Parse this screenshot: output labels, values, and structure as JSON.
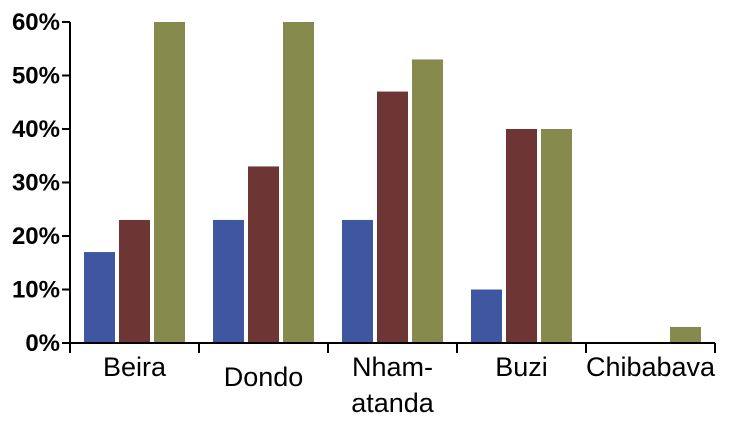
{
  "chart_data": {
    "type": "bar",
    "categories": [
      "Beira",
      "Dondo",
      "Nham-\natanda",
      "Buzi",
      "Chibabava"
    ],
    "series": [
      {
        "values": [
          17,
          23,
          23,
          10,
          0
        ],
        "color": "#3f57a0"
      },
      {
        "values": [
          23,
          33,
          47,
          40,
          0
        ],
        "color": "#6e3535"
      },
      {
        "values": [
          60,
          60,
          53,
          40,
          3
        ],
        "color": "#868a4d"
      }
    ],
    "y_ticks": [
      "0%",
      "10%",
      "20%",
      "30%",
      "40%",
      "50%",
      "60%"
    ],
    "ylim": [
      0,
      60
    ],
    "grid": false,
    "legend": "none"
  }
}
